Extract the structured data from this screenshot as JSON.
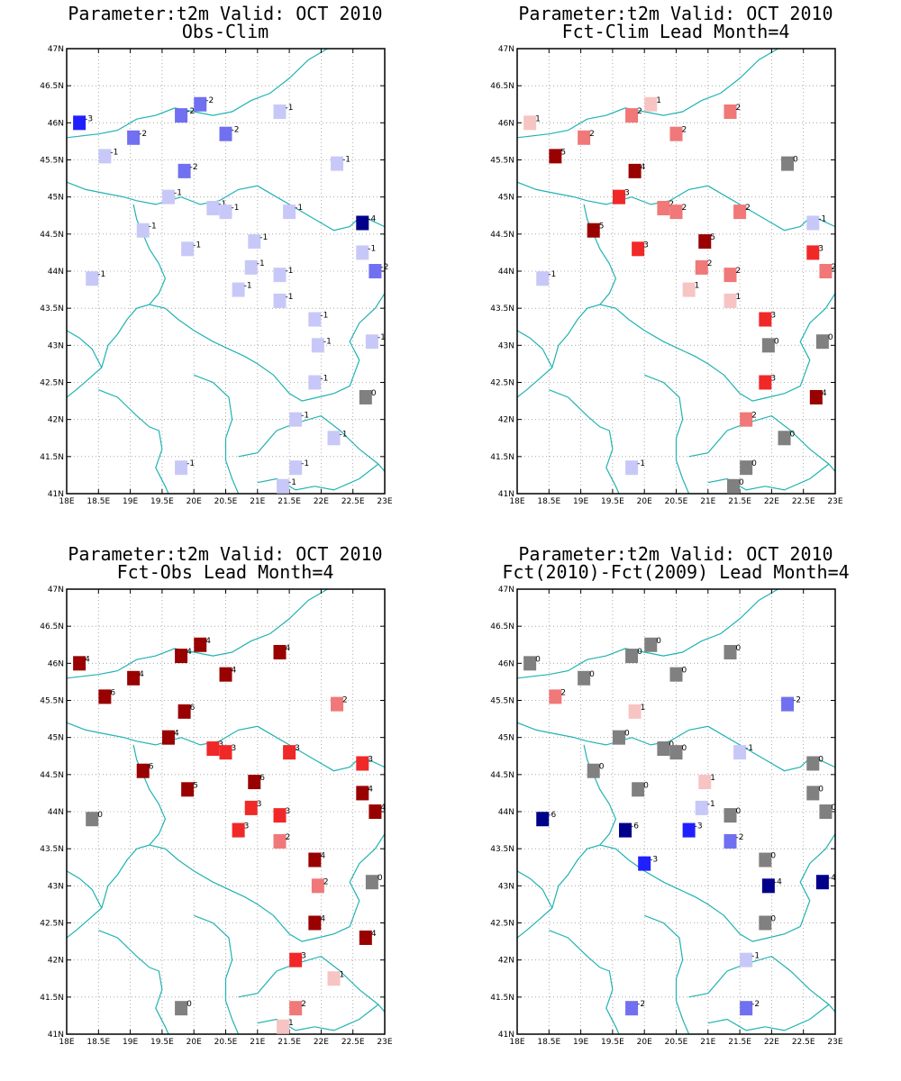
{
  "colors": {
    "coast": "#22b2b2",
    "grid": "#9a9a9a",
    "frame": "#000000"
  },
  "palette": {
    "-6": "#00008b",
    "-5": "#00008b",
    "-4": "#00008b",
    "-3": "#2020ff",
    "-2": "#7070f0",
    "-1": "#c8c8f8",
    "0": "#808080",
    "1": "#f7c4c4",
    "2": "#f07878",
    "3": "#f02828",
    "4": "#990000",
    "5": "#990000",
    "6": "#990000"
  },
  "chart_data": [
    {
      "type": "scatter",
      "title": "Parameter:t2m Valid: OCT 2010",
      "subtitle": "Obs-Clim",
      "xlabels": [
        "18E",
        "18.5E",
        "19E",
        "19.5E",
        "20E",
        "20.5E",
        "21E",
        "21.5E",
        "22E",
        "22.5E",
        "23E"
      ],
      "ylabels": [
        "41N",
        "41.5N",
        "42N",
        "42.5N",
        "43N",
        "43.5N",
        "44N",
        "44.5N",
        "45N",
        "45.5N",
        "46N",
        "46.5N",
        "47N"
      ],
      "xlim": [
        18,
        23
      ],
      "ylim": [
        41,
        47
      ],
      "grid": true,
      "points": [
        [
          18.2,
          46.0,
          -3
        ],
        [
          18.6,
          45.55,
          -1
        ],
        [
          19.05,
          45.8,
          -2
        ],
        [
          19.8,
          46.1,
          -2
        ],
        [
          20.1,
          46.25,
          -2
        ],
        [
          20.5,
          45.85,
          -2
        ],
        [
          19.85,
          45.35,
          -2
        ],
        [
          19.6,
          45.0,
          -1
        ],
        [
          20.3,
          44.85,
          -1
        ],
        [
          20.5,
          44.8,
          -1
        ],
        [
          19.2,
          44.55,
          -1
        ],
        [
          19.9,
          44.3,
          -1
        ],
        [
          18.4,
          43.9,
          -1
        ],
        [
          20.95,
          44.4,
          -1
        ],
        [
          20.9,
          44.05,
          -1
        ],
        [
          20.7,
          43.75,
          -1
        ],
        [
          21.35,
          43.95,
          -1
        ],
        [
          21.35,
          43.6,
          -1
        ],
        [
          21.35,
          46.15,
          -1
        ],
        [
          21.5,
          44.8,
          -1
        ],
        [
          22.25,
          45.45,
          -1
        ],
        [
          22.65,
          44.65,
          -4
        ],
        [
          22.65,
          44.25,
          -1
        ],
        [
          22.85,
          44.0,
          -2
        ],
        [
          21.9,
          43.35,
          -1
        ],
        [
          21.95,
          43.0,
          -1
        ],
        [
          22.8,
          43.05,
          -1
        ],
        [
          21.9,
          42.5,
          -1
        ],
        [
          22.7,
          42.3,
          0
        ],
        [
          21.6,
          42.0,
          -1
        ],
        [
          22.2,
          41.75,
          -1
        ],
        [
          19.8,
          41.35,
          -1
        ],
        [
          21.6,
          41.35,
          -1
        ],
        [
          21.4,
          41.1,
          -1
        ]
      ]
    },
    {
      "type": "scatter",
      "title": "Parameter:t2m Valid: OCT 2010",
      "subtitle": "Fct-Clim Lead Month=4",
      "xlabels": [
        "18E",
        "18.5E",
        "19E",
        "19.5E",
        "20E",
        "20.5E",
        "21E",
        "21.5E",
        "22E",
        "22.5E",
        "23E"
      ],
      "ylabels": [
        "41N",
        "41.5N",
        "42N",
        "42.5N",
        "43N",
        "43.5N",
        "44N",
        "44.5N",
        "45N",
        "45.5N",
        "46N",
        "46.5N",
        "47N"
      ],
      "xlim": [
        18,
        23
      ],
      "ylim": [
        41,
        47
      ],
      "grid": true,
      "points": [
        [
          18.2,
          46.0,
          1
        ],
        [
          18.6,
          45.55,
          5
        ],
        [
          19.05,
          45.8,
          2
        ],
        [
          19.8,
          46.1,
          2
        ],
        [
          20.1,
          46.25,
          1
        ],
        [
          20.5,
          45.85,
          2
        ],
        [
          19.85,
          45.35,
          4
        ],
        [
          19.6,
          45.0,
          3
        ],
        [
          20.3,
          44.85,
          2
        ],
        [
          20.5,
          44.8,
          2
        ],
        [
          19.2,
          44.55,
          5
        ],
        [
          19.9,
          44.3,
          3
        ],
        [
          18.4,
          43.9,
          -1
        ],
        [
          20.95,
          44.4,
          5
        ],
        [
          20.9,
          44.05,
          2
        ],
        [
          20.7,
          43.75,
          1
        ],
        [
          21.35,
          43.95,
          2
        ],
        [
          21.35,
          43.6,
          1
        ],
        [
          21.35,
          46.15,
          2
        ],
        [
          21.5,
          44.8,
          2
        ],
        [
          22.25,
          45.45,
          0
        ],
        [
          22.65,
          44.65,
          -1
        ],
        [
          22.65,
          44.25,
          3
        ],
        [
          22.85,
          44.0,
          2
        ],
        [
          21.9,
          43.35,
          3
        ],
        [
          21.95,
          43.0,
          0
        ],
        [
          22.8,
          43.05,
          0
        ],
        [
          21.9,
          42.5,
          3
        ],
        [
          22.7,
          42.3,
          4
        ],
        [
          21.6,
          42.0,
          2
        ],
        [
          22.2,
          41.75,
          0
        ],
        [
          19.8,
          41.35,
          -1
        ],
        [
          21.6,
          41.35,
          0
        ],
        [
          21.4,
          41.1,
          0
        ]
      ]
    },
    {
      "type": "scatter",
      "title": "Parameter:t2m Valid: OCT 2010",
      "subtitle": "Fct-Obs Lead Month=4",
      "xlabels": [
        "18E",
        "18.5E",
        "19E",
        "19.5E",
        "20E",
        "20.5E",
        "21E",
        "21.5E",
        "22E",
        "22.5E",
        "23E"
      ],
      "ylabels": [
        "41N",
        "41.5N",
        "42N",
        "42.5N",
        "43N",
        "43.5N",
        "44N",
        "44.5N",
        "45N",
        "45.5N",
        "46N",
        "46.5N",
        "47N"
      ],
      "xlim": [
        18,
        23
      ],
      "ylim": [
        41,
        47
      ],
      "grid": true,
      "points": [
        [
          18.2,
          46.0,
          4
        ],
        [
          18.6,
          45.55,
          6
        ],
        [
          19.05,
          45.8,
          4
        ],
        [
          19.8,
          46.1,
          4
        ],
        [
          20.1,
          46.25,
          4
        ],
        [
          20.5,
          45.85,
          4
        ],
        [
          19.85,
          45.35,
          6
        ],
        [
          19.6,
          45.0,
          4
        ],
        [
          20.3,
          44.85,
          3
        ],
        [
          20.5,
          44.8,
          3
        ],
        [
          19.2,
          44.55,
          6
        ],
        [
          19.9,
          44.3,
          5
        ],
        [
          18.4,
          43.9,
          0
        ],
        [
          20.95,
          44.4,
          6
        ],
        [
          20.9,
          44.05,
          3
        ],
        [
          20.7,
          43.75,
          3
        ],
        [
          21.35,
          43.95,
          3
        ],
        [
          21.35,
          43.6,
          2
        ],
        [
          21.35,
          46.15,
          4
        ],
        [
          21.5,
          44.8,
          3
        ],
        [
          22.25,
          45.45,
          2
        ],
        [
          22.65,
          44.65,
          3
        ],
        [
          22.65,
          44.25,
          4
        ],
        [
          22.85,
          44.0,
          4
        ],
        [
          21.9,
          43.35,
          4
        ],
        [
          21.95,
          43.0,
          2
        ],
        [
          22.8,
          43.05,
          0
        ],
        [
          21.9,
          42.5,
          4
        ],
        [
          22.7,
          42.3,
          4
        ],
        [
          21.6,
          42.0,
          3
        ],
        [
          22.2,
          41.75,
          1
        ],
        [
          19.8,
          41.35,
          0
        ],
        [
          21.6,
          41.35,
          2
        ],
        [
          21.4,
          41.1,
          1
        ]
      ]
    },
    {
      "type": "scatter",
      "title": "Parameter:t2m Valid: OCT 2010",
      "subtitle": "Fct(2010)-Fct(2009) Lead Month=4",
      "xlabels": [
        "18E",
        "18.5E",
        "19E",
        "19.5E",
        "20E",
        "20.5E",
        "21E",
        "21.5E",
        "22E",
        "22.5E",
        "23E"
      ],
      "ylabels": [
        "41N",
        "41.5N",
        "42N",
        "42.5N",
        "43N",
        "43.5N",
        "44N",
        "44.5N",
        "45N",
        "45.5N",
        "46N",
        "46.5N",
        "47N"
      ],
      "xlim": [
        18,
        23
      ],
      "ylim": [
        41,
        47
      ],
      "grid": true,
      "points": [
        [
          18.2,
          46.0,
          0
        ],
        [
          18.6,
          45.55,
          2
        ],
        [
          19.05,
          45.8,
          0
        ],
        [
          19.8,
          46.1,
          0
        ],
        [
          20.1,
          46.25,
          0
        ],
        [
          20.5,
          45.85,
          0
        ],
        [
          19.85,
          45.35,
          1
        ],
        [
          19.6,
          45.0,
          0
        ],
        [
          20.3,
          44.85,
          0
        ],
        [
          20.5,
          44.8,
          0
        ],
        [
          19.2,
          44.55,
          0
        ],
        [
          19.9,
          44.3,
          0
        ],
        [
          18.4,
          43.9,
          -6
        ],
        [
          20.95,
          44.4,
          1
        ],
        [
          20.9,
          44.05,
          -1
        ],
        [
          20.7,
          43.75,
          -3
        ],
        [
          21.35,
          43.95,
          0
        ],
        [
          21.35,
          43.6,
          -2
        ],
        [
          21.35,
          46.15,
          0
        ],
        [
          21.5,
          44.8,
          -1
        ],
        [
          22.25,
          45.45,
          -2
        ],
        [
          22.65,
          44.65,
          0
        ],
        [
          22.65,
          44.25,
          0
        ],
        [
          22.85,
          44.0,
          0
        ],
        [
          21.9,
          43.35,
          0
        ],
        [
          21.95,
          43.0,
          -4
        ],
        [
          22.8,
          43.05,
          -4
        ],
        [
          21.9,
          42.5,
          0
        ],
        [
          21.6,
          42.0,
          -1
        ],
        [
          19.8,
          41.35,
          -2
        ],
        [
          21.6,
          41.35,
          -2
        ],
        [
          19.7,
          43.75,
          -6
        ],
        [
          20.0,
          43.3,
          -3
        ]
      ]
    }
  ]
}
